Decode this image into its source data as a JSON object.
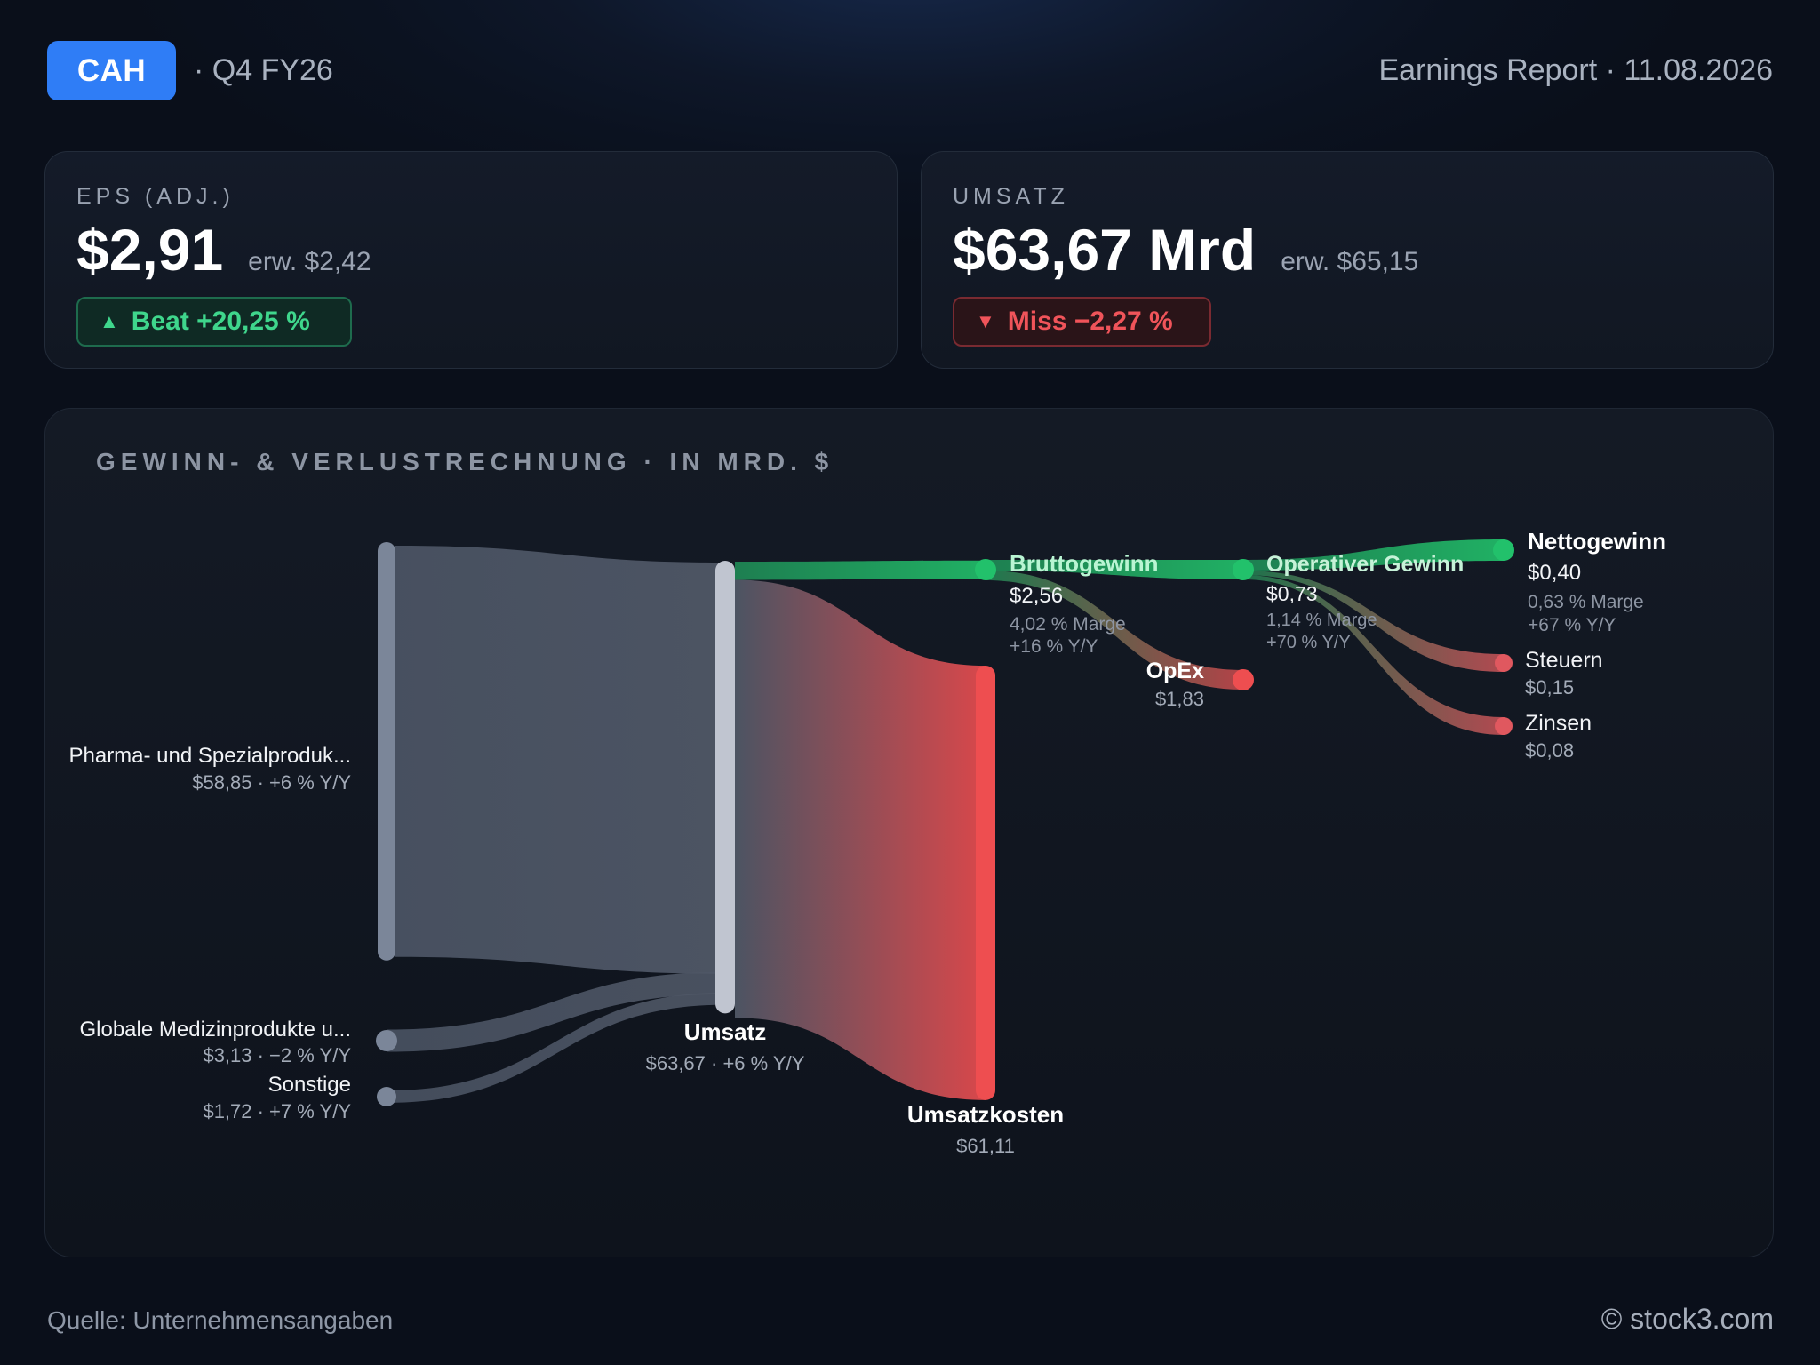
{
  "header": {
    "ticker": "CAH",
    "period": "· Q4 FY26",
    "report": "Earnings Report · 11.08.2026"
  },
  "cards": {
    "eps": {
      "label": "EPS (ADJ.)",
      "value": "$2,91",
      "expected": "erw. $2,42",
      "badge_icon": "triangle-up-icon",
      "badge": "Beat +20,25 %",
      "badge_color": "#3fd68c"
    },
    "revenue": {
      "label": "UMSATZ",
      "value": "$63,67 Mrd",
      "expected": "erw. $65,15",
      "badge_icon": "triangle-down-icon",
      "badge": "Miss −2,27 %",
      "badge_color": "#f0545a"
    }
  },
  "panel": {
    "title": "GEWINN- & VERLUSTRECHNUNG · IN MRD. $"
  },
  "chart_data": {
    "type": "sankey",
    "title": "GEWINN- & VERLUSTRECHNUNG · IN MRD. $",
    "units": "Mrd. $",
    "nodes": [
      {
        "id": "pharma",
        "name": "Pharma- und Spezialproduk...",
        "value": 58.85,
        "label": "$58,85 · +6 % Y/Y",
        "color": "#7b8699"
      },
      {
        "id": "global",
        "name": "Globale Medizinprodukte u...",
        "value": 3.13,
        "label": "$3,13 · −2 % Y/Y",
        "color": "#7b8699"
      },
      {
        "id": "sonstige",
        "name": "Sonstige",
        "value": 1.72,
        "label": "$1,72 · +7 % Y/Y",
        "color": "#7b8699"
      },
      {
        "id": "umsatz",
        "name": "Umsatz",
        "value": 63.67,
        "label": "$63,67 · +6 % Y/Y",
        "color": "#c0c5d0"
      },
      {
        "id": "brutto",
        "name": "Bruttogewinn",
        "value": 2.56,
        "label": "$2,56",
        "margin": "4,02 % Marge",
        "yoy": "+16 % Y/Y",
        "color": "#22c16b"
      },
      {
        "id": "kosten",
        "name": "Umsatzkosten",
        "value": 61.11,
        "label": "$61,11",
        "color": "#ee4e50"
      },
      {
        "id": "opgewinn",
        "name": "Operativer Gewinn",
        "value": 0.73,
        "label": "$0,73",
        "margin": "1,14 % Marge",
        "yoy": "+70 % Y/Y",
        "color": "#22c16b"
      },
      {
        "id": "opex",
        "name": "OpEx",
        "value": 1.83,
        "label": "$1,83",
        "color": "#ee4e50"
      },
      {
        "id": "netto",
        "name": "Nettogewinn",
        "value": 0.4,
        "label": "$0,40",
        "margin": "0,63 % Marge",
        "yoy": "+67 % Y/Y",
        "color": "#22c16b"
      },
      {
        "id": "steuern",
        "name": "Steuern",
        "value": 0.15,
        "label": "$0,15",
        "color": "#e0585f"
      },
      {
        "id": "zinsen",
        "name": "Zinsen",
        "value": 0.08,
        "label": "$0,08",
        "color": "#e0585f"
      }
    ],
    "links": [
      {
        "source": "pharma",
        "target": "umsatz",
        "value": 58.85
      },
      {
        "source": "global",
        "target": "umsatz",
        "value": 3.13
      },
      {
        "source": "sonstige",
        "target": "umsatz",
        "value": 1.72
      },
      {
        "source": "umsatz",
        "target": "brutto",
        "value": 2.56
      },
      {
        "source": "umsatz",
        "target": "kosten",
        "value": 61.11
      },
      {
        "source": "brutto",
        "target": "opgewinn",
        "value": 0.73
      },
      {
        "source": "brutto",
        "target": "opex",
        "value": 1.83
      },
      {
        "source": "opgewinn",
        "target": "netto",
        "value": 0.4
      },
      {
        "source": "opgewinn",
        "target": "steuern",
        "value": 0.15
      },
      {
        "source": "opgewinn",
        "target": "zinsen",
        "value": 0.08
      }
    ]
  },
  "footer": {
    "source": "Quelle: Unternehmensangaben",
    "copyright": "© stock3.com"
  }
}
